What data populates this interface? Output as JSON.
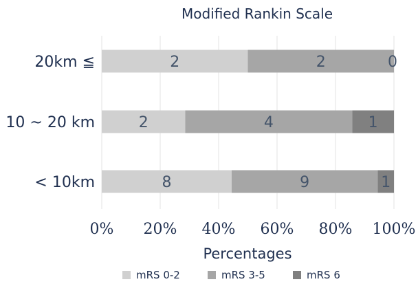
{
  "chart_data": {
    "type": "bar",
    "orientation": "horizontal",
    "stacked": "percent",
    "title": "Modified Rankin Scale",
    "xlabel": "Percentages",
    "ylabel": "",
    "xlim": [
      0,
      100
    ],
    "x_ticks": [
      "0%",
      "20%",
      "40%",
      "60%",
      "80%",
      "100%"
    ],
    "categories": [
      "20km ≦",
      "10 ~ 20 km",
      "< 10km"
    ],
    "series": [
      {
        "name": "mRS 0-2",
        "values": [
          2,
          2,
          8
        ],
        "color": "#d0d0d0"
      },
      {
        "name": "mRS 3-5",
        "values": [
          2,
          4,
          9
        ],
        "color": "#a6a6a6"
      },
      {
        "name": "mRS 6",
        "values": [
          0,
          1,
          1
        ],
        "color": "#808080"
      }
    ],
    "grid": "vertical",
    "legend": "bottom"
  }
}
